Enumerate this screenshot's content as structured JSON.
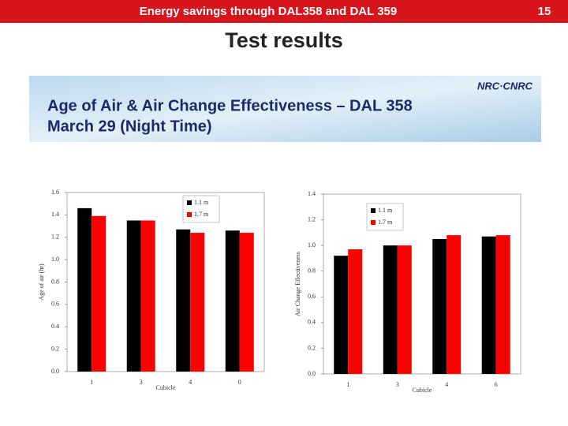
{
  "header": {
    "title": "Energy savings through DAL358 and DAL 359",
    "page_number": "15"
  },
  "title": "Test results",
  "banner": {
    "title": "Age of Air & Air Change Effectiveness – DAL 358",
    "subtitle": "March 29 (Night Time)",
    "logo": "NRC·CNRC"
  },
  "chart_data": [
    {
      "type": "bar",
      "x_label": "Cubicle",
      "y_label": "Age of air (hr)",
      "categories": [
        "1",
        "3",
        "4",
        "0"
      ],
      "series": [
        {
          "name": "1.1 m",
          "color": "#000000",
          "values": [
            1.46,
            1.35,
            1.27,
            1.26
          ]
        },
        {
          "name": "1.7 m",
          "color": "#ff0000",
          "values": [
            1.39,
            1.35,
            1.24,
            1.24
          ]
        }
      ],
      "ylim": [
        0,
        1.6
      ],
      "yticks": [
        {
          "value": 0,
          "label": "0.0"
        },
        0.2,
        0.4,
        0.6,
        0.8,
        {
          "value": 1,
          "label": "1.0"
        },
        1.2,
        1.4,
        1.6
      ],
      "legend": "top-right",
      "grid": false
    },
    {
      "type": "bar",
      "x_label": "Cubicle",
      "y_label": "Air Change Effectiveness",
      "categories": [
        "1",
        "3",
        "4",
        "6"
      ],
      "series": [
        {
          "name": "1.1 m",
          "color": "#000000",
          "values": [
            0.92,
            1.0,
            1.05,
            1.07
          ]
        },
        {
          "name": "1.7 m",
          "color": "#ff0000",
          "values": [
            0.97,
            1.0,
            1.08,
            1.08
          ]
        }
      ],
      "ylim": [
        0,
        1.4
      ],
      "yticks": [
        {
          "value": 0,
          "label": "0.0"
        },
        0.2,
        0.4,
        0.6,
        0.8,
        {
          "value": 1,
          "label": "1.0"
        },
        1.2,
        1.4
      ],
      "legend": "top-left",
      "grid": false
    }
  ]
}
